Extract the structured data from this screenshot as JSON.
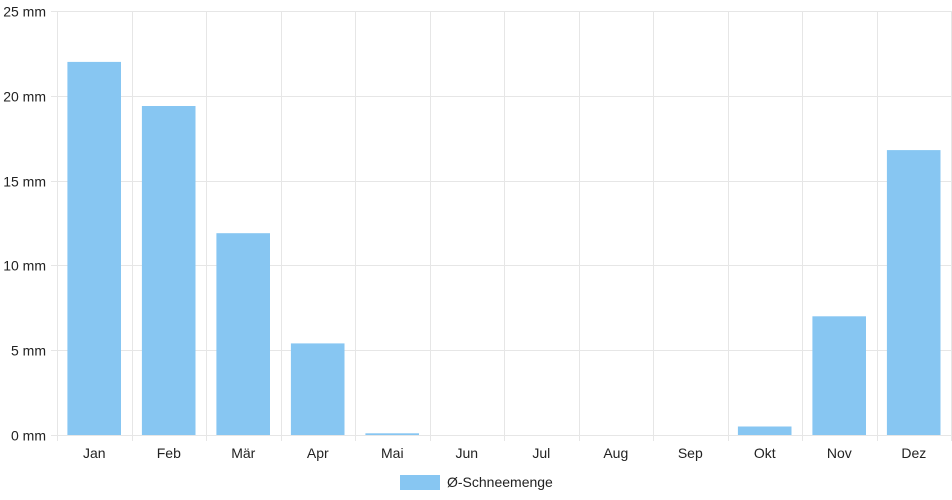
{
  "chart_data": {
    "type": "bar",
    "categories": [
      "Jan",
      "Feb",
      "Mär",
      "Apr",
      "Mai",
      "Jun",
      "Jul",
      "Aug",
      "Sep",
      "Okt",
      "Nov",
      "Dez"
    ],
    "series": [
      {
        "name": "Ø-Schneemenge",
        "values": [
          22.0,
          19.4,
          11.9,
          5.4,
          0.1,
          0,
          0,
          0,
          0,
          0.5,
          7.0,
          16.8
        ],
        "color": "#87c6f2"
      }
    ],
    "ylim": [
      0,
      25
    ],
    "yticks": [
      0,
      5,
      10,
      15,
      20,
      25
    ],
    "ytick_labels": [
      "0 mm",
      "5 mm",
      "10 mm",
      "15 mm",
      "20 mm",
      "25 mm"
    ],
    "grid": true,
    "legend": "bottom-center",
    "gridline_color": "#e6e6e6"
  }
}
